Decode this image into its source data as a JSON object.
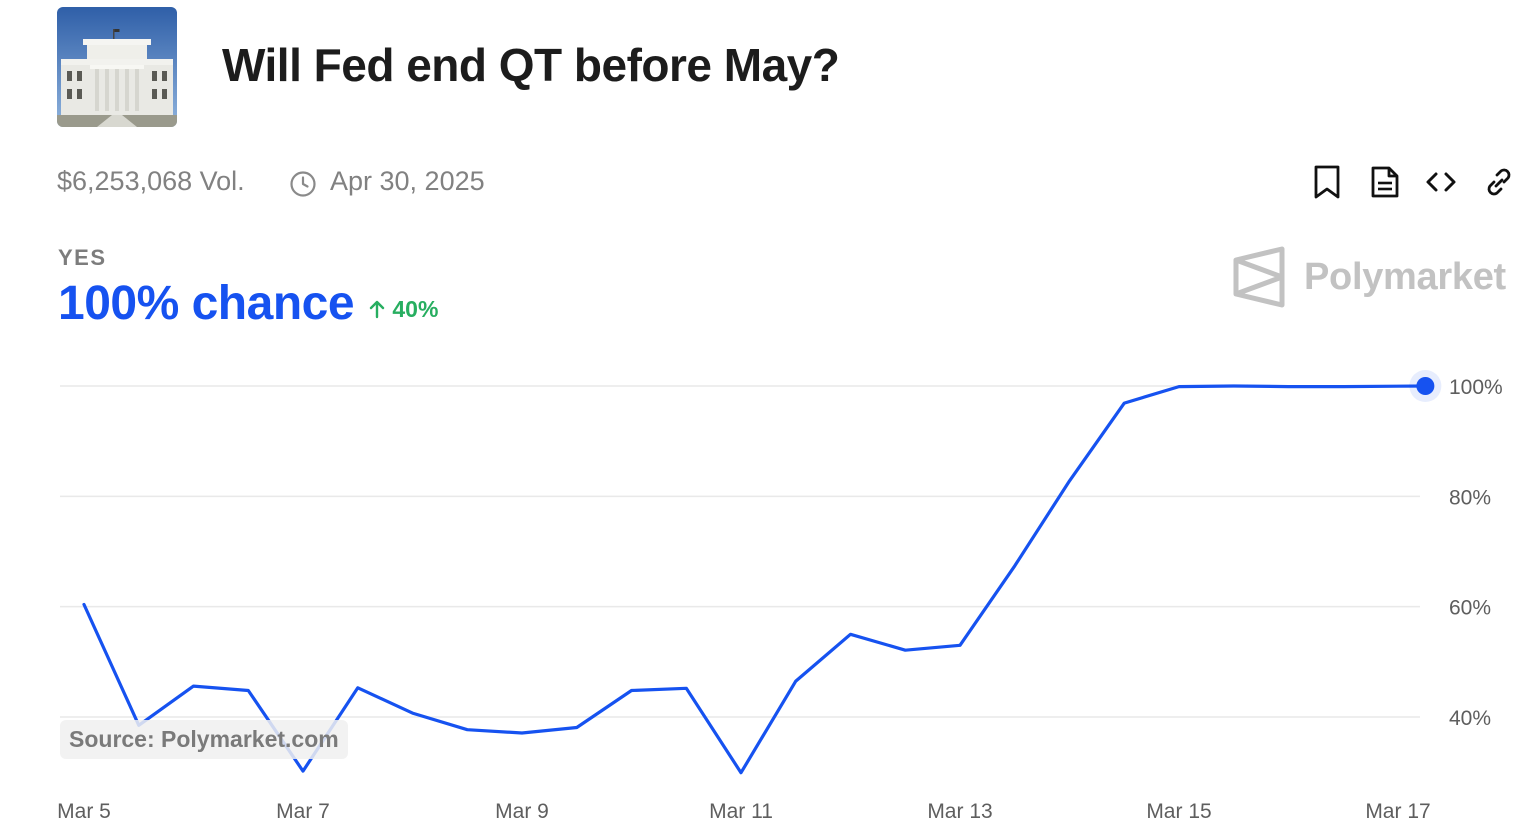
{
  "header": {
    "title": "Will Fed end QT before May?",
    "thumbnail_icon": "federal-reserve-building-image"
  },
  "meta": {
    "volume": "$6,253,068 Vol.",
    "end_date": "Apr 30, 2025",
    "clock_icon": "clock-icon"
  },
  "toolbar": {
    "icons": [
      "bookmark-icon",
      "document-icon",
      "embed-code-icon",
      "link-icon"
    ]
  },
  "outcome": {
    "label": "YES",
    "chance": "100% chance",
    "delta": "40%",
    "delta_icon": "arrow-up-icon"
  },
  "brand": {
    "name": "Polymarket",
    "logo_icon": "polymarket-logo-icon"
  },
  "source": "Source: Polymarket.com",
  "colors": {
    "accent": "#1652f0",
    "positive": "#27ae60",
    "muted": "#818181",
    "grid": "#e9e9e9",
    "axis_text": "#5e5e5e"
  },
  "chart_data": {
    "type": "line",
    "title": "",
    "xlabel": "",
    "ylabel": "",
    "x_ticks": [
      "Mar 5",
      "Mar 7",
      "Mar 9",
      "Mar 11",
      "Mar 13",
      "Mar 15",
      "Mar 17"
    ],
    "y_ticks": [
      "100%",
      "80%",
      "60%",
      "40%"
    ],
    "ylim": [
      40,
      100
    ],
    "y_axis_side": "right",
    "grid": true,
    "series": [
      {
        "name": "",
        "points": [
          {
            "x": "Mar 5 00:00",
            "y": 60.4
          },
          {
            "x": "Mar 5 12:00",
            "y": 38.5
          },
          {
            "x": "Mar 6 00:00",
            "y": 45.6
          },
          {
            "x": "Mar 6 12:00",
            "y": 44.8
          },
          {
            "x": "Mar 7 00:00",
            "y": 30.2
          },
          {
            "x": "Mar 7 12:00",
            "y": 45.3
          },
          {
            "x": "Mar 8 00:00",
            "y": 40.7
          },
          {
            "x": "Mar 8 12:00",
            "y": 37.7
          },
          {
            "x": "Mar 9 00:00",
            "y": 37.1
          },
          {
            "x": "Mar 9 12:00",
            "y": 38.1
          },
          {
            "x": "Mar 10 00:00",
            "y": 44.8
          },
          {
            "x": "Mar 10 12:00",
            "y": 45.2
          },
          {
            "x": "Mar 11 00:00",
            "y": 29.9
          },
          {
            "x": "Mar 11 12:00",
            "y": 46.5
          },
          {
            "x": "Mar 12 00:00",
            "y": 55.0
          },
          {
            "x": "Mar 12 12:00",
            "y": 52.1
          },
          {
            "x": "Mar 13 00:00",
            "y": 53.0
          },
          {
            "x": "Mar 13 12:00",
            "y": 67.4
          },
          {
            "x": "Mar 14 00:00",
            "y": 82.8
          },
          {
            "x": "Mar 14 12:00",
            "y": 96.9
          },
          {
            "x": "Mar 15 00:00",
            "y": 99.9
          },
          {
            "x": "Mar 15 12:00",
            "y": 100.0
          },
          {
            "x": "Mar 16 00:00",
            "y": 99.9
          },
          {
            "x": "Mar 16 12:00",
            "y": 99.9
          },
          {
            "x": "Mar 17 06:00",
            "y": 100.0
          }
        ]
      }
    ]
  }
}
